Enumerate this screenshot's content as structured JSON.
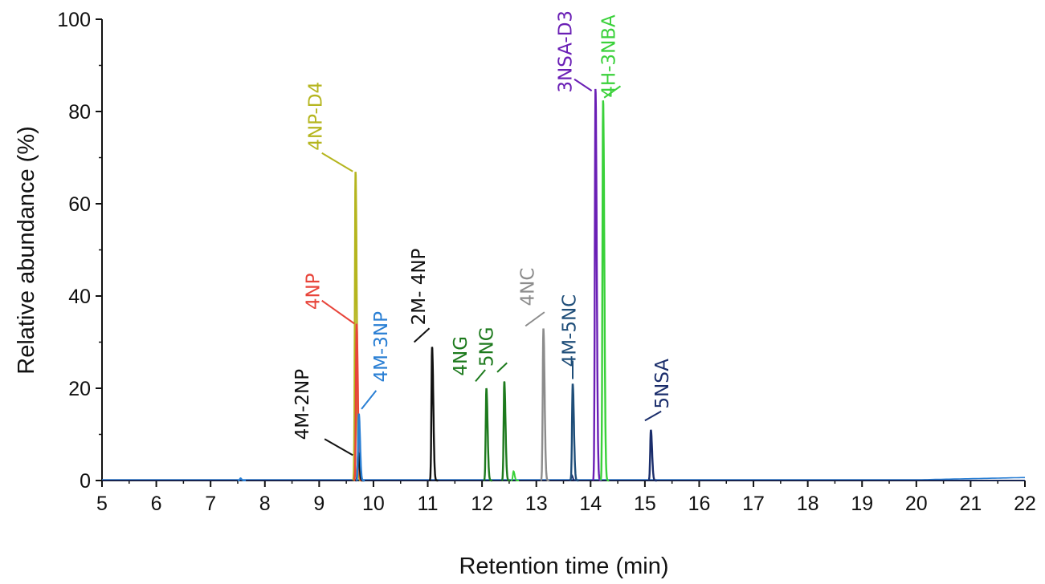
{
  "chart_data": {
    "type": "line",
    "title": "",
    "xlabel": "Retention time (min)",
    "ylabel": "Relative abundance (%)",
    "xlim": [
      5,
      22
    ],
    "ylim": [
      0,
      100
    ],
    "xticks": [
      5,
      6,
      7,
      8,
      9,
      10,
      11,
      12,
      13,
      14,
      15,
      16,
      17,
      18,
      19,
      20,
      21,
      22
    ],
    "yticks": [
      0,
      20,
      40,
      60,
      80,
      100
    ],
    "grid": false,
    "legend": "none",
    "series": [
      {
        "name": "4NP-D4",
        "color": "#b5b51e",
        "peak_x": 9.67,
        "peak_y": 67
      },
      {
        "name": "4NP",
        "color": "#e8443a",
        "peak_x": 9.69,
        "peak_y": 34
      },
      {
        "name": "4M-2NP",
        "color": "#111111",
        "peak_x": 9.72,
        "peak_y": 6
      },
      {
        "name": "4M-3NP",
        "color": "#2a7fd4",
        "peak_x": 9.73,
        "peak_y": 14.5
      },
      {
        "name": "2M- 4NP",
        "color": "#111111",
        "peak_x": 11.08,
        "peak_y": 29
      },
      {
        "name": "4NG",
        "color": "#1d7a1d",
        "peak_x": 12.08,
        "peak_y": 20
      },
      {
        "name": "5NG",
        "color": "#1d7a1d",
        "peak_x": 12.41,
        "peak_y": 21.5
      },
      {
        "name": "4NC",
        "color": "#8c8c8c",
        "peak_x": 13.13,
        "peak_y": 33
      },
      {
        "name": "4M-5NC",
        "color": "#1f4e79",
        "peak_x": 13.67,
        "peak_y": 21
      },
      {
        "name": "3NSA-D3",
        "color": "#6a1fb5",
        "peak_x": 14.09,
        "peak_y": 85
      },
      {
        "name": "4H-3NBA",
        "color": "#3ad13a",
        "peak_x": 14.23,
        "peak_y": 82.5
      },
      {
        "name": "5NSA",
        "color": "#1a2d6b",
        "peak_x": 15.11,
        "peak_y": 11
      }
    ],
    "minor_peaks": [
      {
        "color": "#3ad13a",
        "x": 12.58,
        "y": 2
      },
      {
        "color": "#2a7fd4",
        "x": 7.55,
        "y": 0.5
      },
      {
        "color": "#1a2d6b",
        "x": 13.65,
        "y": 1.2
      }
    ],
    "annotations": [
      {
        "text": "4NP-D4",
        "color": "#b5b51e",
        "x": 9.05,
        "y": 79,
        "leader": [
          [
            9.05,
            71
          ],
          [
            9.62,
            67
          ]
        ]
      },
      {
        "text": "4NP",
        "color": "#e8443a",
        "x": 9.0,
        "y": 41,
        "leader": [
          [
            9.05,
            39
          ],
          [
            9.65,
            34
          ]
        ]
      },
      {
        "text": "4M-2NP",
        "color": "#111111",
        "x": 8.8,
        "y": 16.5,
        "leader": [
          [
            9.1,
            9
          ],
          [
            9.62,
            5.5
          ]
        ]
      },
      {
        "text": "4M-3NP",
        "color": "#2a7fd4",
        "x": 10.25,
        "y": 29,
        "leader": [
          [
            9.78,
            15.5
          ],
          [
            10.05,
            19.5
          ]
        ]
      },
      {
        "text": "2M- 4NP",
        "color": "#111111",
        "x": 10.95,
        "y": 42,
        "leader": [
          [
            10.75,
            30
          ],
          [
            11.03,
            33
          ]
        ]
      },
      {
        "text": "4NG",
        "color": "#1d7a1d",
        "x": 11.72,
        "y": 27,
        "leader": [
          [
            11.88,
            21.5
          ],
          [
            12.06,
            24
          ]
        ]
      },
      {
        "text": "5NG",
        "color": "#1d7a1d",
        "x": 12.2,
        "y": 29,
        "leader": [
          [
            12.28,
            23.5
          ],
          [
            12.46,
            25.5
          ]
        ]
      },
      {
        "text": "4NC",
        "color": "#8c8c8c",
        "x": 12.95,
        "y": 42,
        "leader": [
          [
            12.8,
            33.5
          ],
          [
            13.15,
            36.5
          ]
        ]
      },
      {
        "text": "4M-5NC",
        "color": "#1f4e79",
        "x": 13.72,
        "y": 32.5,
        "leader": [
          [
            13.67,
            22
          ],
          [
            13.67,
            26
          ]
        ]
      },
      {
        "text": "3NSA-D3",
        "color": "#6a1fb5",
        "x": 13.65,
        "y": 93,
        "leader": [
          [
            13.7,
            87
          ],
          [
            14.02,
            84.5
          ]
        ]
      },
      {
        "text": "4H-3NBA",
        "color": "#3ad13a",
        "x": 14.45,
        "y": 92,
        "leader": [
          [
            14.25,
            83
          ],
          [
            14.55,
            85.5
          ]
        ]
      },
      {
        "text": "5NSA",
        "color": "#1a2d6b",
        "x": 15.43,
        "y": 21,
        "leader": [
          [
            15.0,
            13
          ],
          [
            15.3,
            15
          ]
        ]
      }
    ]
  }
}
